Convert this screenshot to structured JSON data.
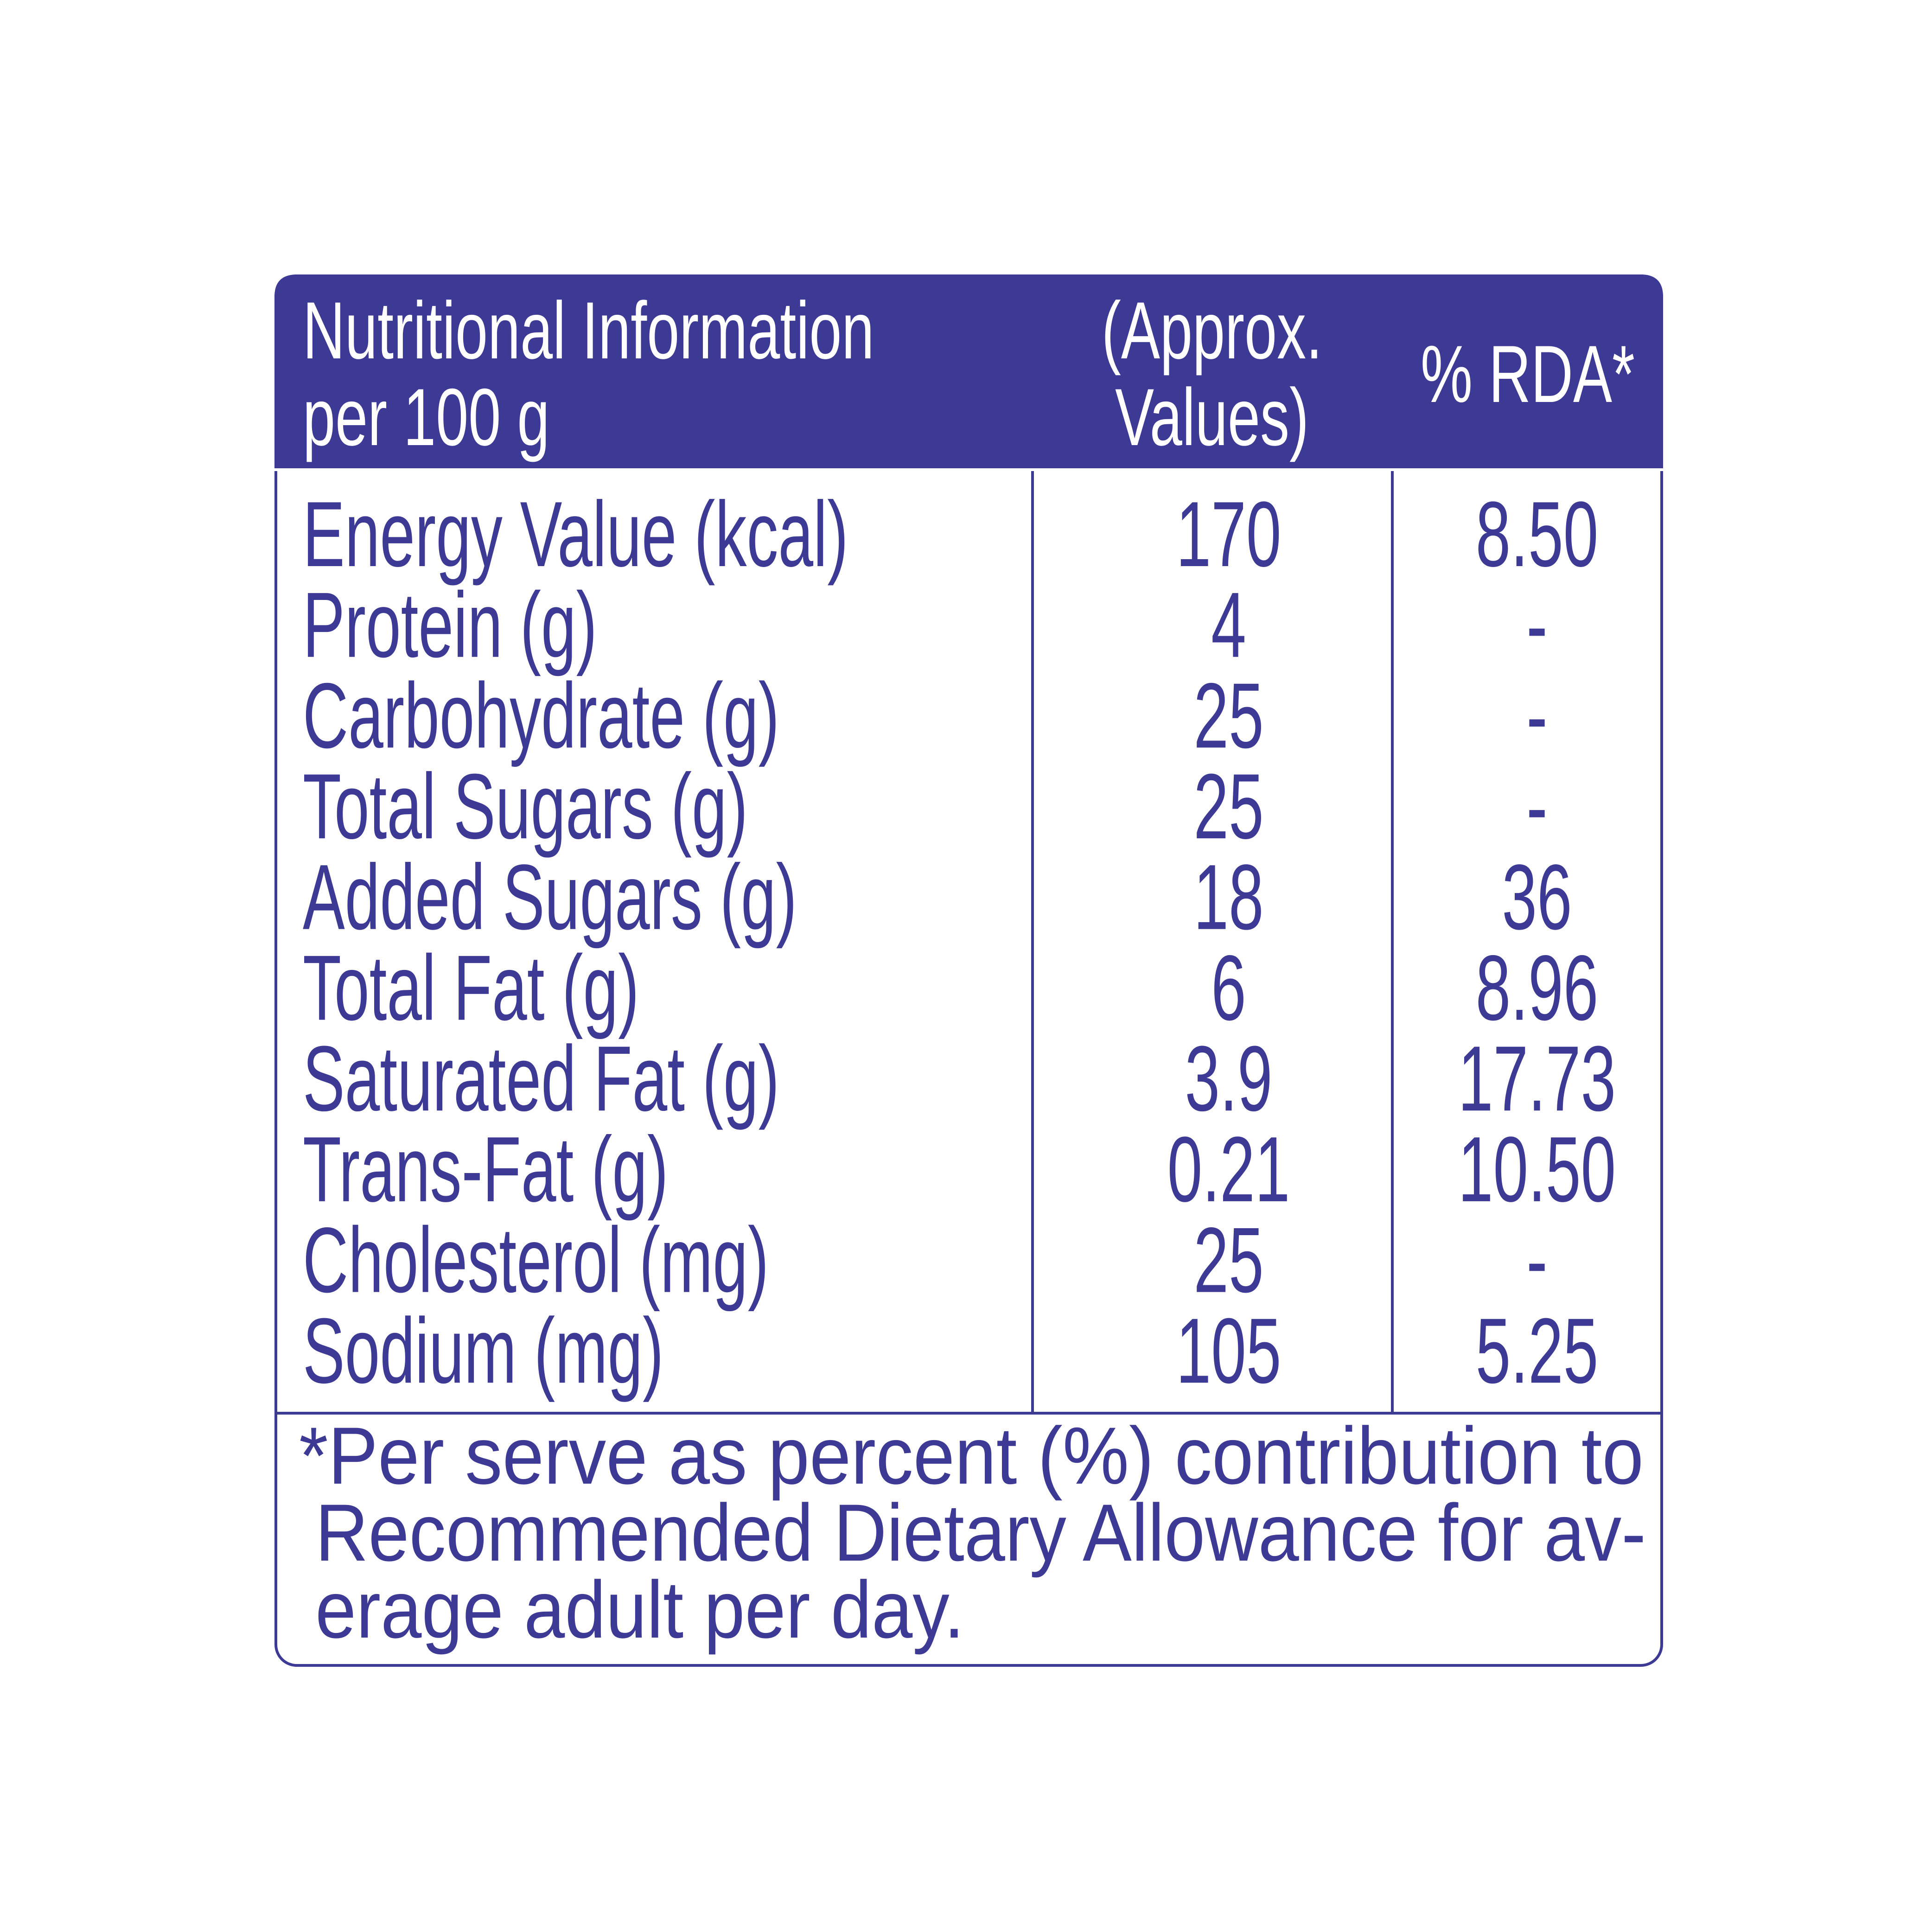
{
  "header": {
    "columns": [
      [
        "Nutritional Information",
        "per 100 g"
      ],
      [
        "(Approx.",
        "Values)"
      ],
      [
        "% RDA*"
      ]
    ]
  },
  "table": {
    "rows": [
      [
        "Energy Value (kcal)",
        "170",
        "8.50"
      ],
      [
        "Protein (g)",
        "4",
        "-"
      ],
      [
        "Carbohydrate (g)",
        "25",
        "-"
      ],
      [
        "Total Sugars (g)",
        "25",
        "-"
      ],
      [
        "Added Sugars (g)",
        "18",
        "36"
      ],
      [
        "Total Fat (g)",
        "6",
        "8.96"
      ],
      [
        "Saturated Fat (g)",
        "3.9",
        "17.73"
      ],
      [
        "Trans-Fat (g)",
        "0.21",
        "10.50"
      ],
      [
        "Cholesterol (mg)",
        "25",
        "-"
      ],
      [
        "Sodium (mg)",
        "105",
        "5.25"
      ]
    ]
  },
  "footnote": {
    "lines": [
      "*Per serve as percent (%) contribution to",
      "Recommended Dietary Allowance for av-",
      "erage adult per day."
    ]
  }
}
